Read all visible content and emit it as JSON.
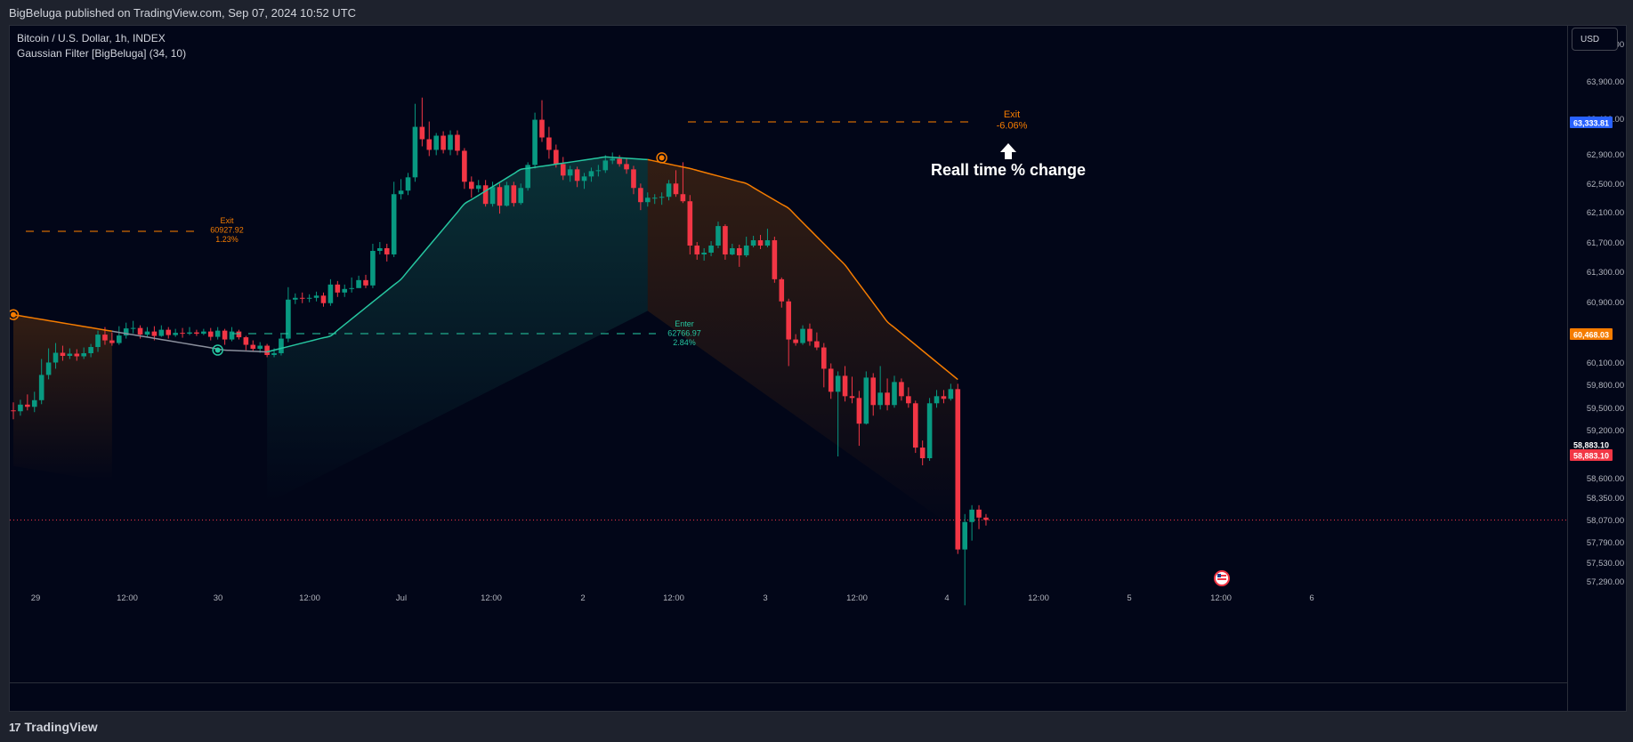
{
  "header": {
    "published": "BigBeluga published on TradingView.com, Sep 07, 2024 10:52 UTC"
  },
  "symbol": {
    "title": "Bitcoin / U.S. Dollar, 1h, INDEX",
    "indicator": "Gaussian Filter [BigBeluga] (34, 10)"
  },
  "currency_button": "USD",
  "footer": {
    "brand": "TradingView",
    "logo": "17"
  },
  "colors": {
    "bull": "#089981",
    "bear": "#f23645",
    "filter_up": "#26c6a0",
    "filter_down": "#f57c00",
    "bg": "#020618"
  },
  "chart_data": {
    "type": "candlestick",
    "y_ticks": [
      "64,100.00",
      "63,900.00",
      "63,400.00",
      "62,900.00",
      "62,500.00",
      "62,100.00",
      "61,700.00",
      "61,300.00",
      "60,900.00",
      "60,100.00",
      "59,800.00",
      "59,500.00",
      "59,200.00",
      "58,600.00",
      "58,350.00",
      "58,070.00",
      "57,790.00",
      "57,530.00",
      "57,290.00"
    ],
    "x_ticks": [
      "29",
      "12:00",
      "30",
      "12:00",
      "Jul",
      "12:00",
      "2",
      "12:00",
      "3",
      "12:00",
      "4",
      "12:00",
      "5",
      "12:00",
      "6"
    ],
    "price_labels": [
      {
        "text": "63,333.81",
        "color": "#2962ff"
      },
      {
        "text": "60,468.03",
        "color": "#f57c00"
      },
      {
        "text": "58,883.10",
        "color": "#020618"
      },
      {
        "text": "58,883.10",
        "color": "#f23645"
      }
    ],
    "candles": [
      [
        60120,
        60110,
        60210,
        60020
      ],
      [
        60110,
        60185,
        60240,
        60060
      ],
      [
        60185,
        60160,
        60300,
        60120
      ],
      [
        60160,
        60235,
        60330,
        60100
      ],
      [
        60235,
        60520,
        60700,
        60190
      ],
      [
        60520,
        60660,
        60820,
        60470
      ],
      [
        60660,
        60770,
        60880,
        60590
      ],
      [
        60770,
        60735,
        60850,
        60680
      ],
      [
        60735,
        60760,
        60820,
        60700
      ],
      [
        60760,
        60730,
        60810,
        60680
      ],
      [
        60730,
        60765,
        60830,
        60700
      ],
      [
        60765,
        60835,
        60870,
        60720
      ],
      [
        60835,
        60975,
        61020,
        60780
      ],
      [
        60975,
        60910,
        61060,
        60860
      ],
      [
        60910,
        60880,
        61000,
        60850
      ],
      [
        60880,
        60965,
        61070,
        60860
      ],
      [
        60965,
        61045,
        61110,
        60930
      ],
      [
        61045,
        61050,
        61130,
        60990
      ],
      [
        61050,
        60975,
        61080,
        60930
      ],
      [
        60975,
        61010,
        61060,
        60950
      ],
      [
        61010,
        60960,
        61070,
        60910
      ],
      [
        60960,
        61030,
        61080,
        60950
      ],
      [
        61030,
        60970,
        61060,
        60930
      ],
      [
        60970,
        60995,
        61040,
        60950
      ],
      [
        60995,
        60985,
        61050,
        60940
      ],
      [
        60985,
        61000,
        61060,
        60970
      ],
      [
        61000,
        60985,
        61030,
        60960
      ],
      [
        60985,
        61010,
        61040,
        60970
      ],
      [
        61010,
        60950,
        61050,
        60910
      ],
      [
        60950,
        61020,
        61060,
        60920
      ],
      [
        61020,
        60920,
        61040,
        60860
      ],
      [
        60920,
        61010,
        61060,
        60900
      ],
      [
        61010,
        60945,
        61030,
        60920
      ],
      [
        60945,
        60860,
        60960,
        60800
      ],
      [
        60860,
        60815,
        60910,
        60780
      ],
      [
        60815,
        60850,
        60890,
        60770
      ],
      [
        60850,
        60745,
        60870,
        60720
      ],
      [
        60745,
        60765,
        60820,
        60720
      ],
      [
        60765,
        60930,
        60980,
        60740
      ],
      [
        60930,
        61370,
        61510,
        60890
      ],
      [
        61370,
        61390,
        61440,
        61320
      ],
      [
        61390,
        61380,
        61450,
        61330
      ],
      [
        61380,
        61390,
        61430,
        61340
      ],
      [
        61390,
        61415,
        61460,
        61350
      ],
      [
        61415,
        61330,
        61450,
        61290
      ],
      [
        61330,
        61540,
        61600,
        61300
      ],
      [
        61540,
        61450,
        61580,
        61400
      ],
      [
        61450,
        61490,
        61540,
        61400
      ],
      [
        61490,
        61500,
        61620,
        61450
      ],
      [
        61500,
        61590,
        61640,
        61520
      ],
      [
        61590,
        61530,
        61650,
        61500
      ],
      [
        61530,
        61920,
        62000,
        61500
      ],
      [
        61920,
        61950,
        62020,
        61880
      ],
      [
        61950,
        61880,
        62000,
        61800
      ],
      [
        61880,
        62560,
        62700,
        61850
      ],
      [
        62560,
        62600,
        62730,
        62500
      ],
      [
        62600,
        62750,
        62800,
        62550
      ],
      [
        62750,
        63320,
        63580,
        62700
      ],
      [
        63320,
        63180,
        63650,
        63100
      ],
      [
        63180,
        63060,
        63380,
        62990
      ],
      [
        63060,
        63220,
        63250,
        63000
      ],
      [
        63220,
        63060,
        63270,
        63020
      ],
      [
        63060,
        63230,
        63280,
        63000
      ],
      [
        63230,
        63050,
        63280,
        63000
      ],
      [
        63050,
        62700,
        63080,
        62620
      ],
      [
        62700,
        62620,
        62760,
        62520
      ],
      [
        62620,
        62660,
        62720,
        62580
      ],
      [
        62660,
        62450,
        62720,
        62420
      ],
      [
        62450,
        62640,
        62700,
        62420
      ],
      [
        62640,
        62430,
        62680,
        62340
      ],
      [
        62430,
        62660,
        62700,
        62420
      ],
      [
        62660,
        62460,
        62700,
        62420
      ],
      [
        62460,
        62630,
        62680,
        62440
      ],
      [
        62630,
        62890,
        62920,
        62600
      ],
      [
        62890,
        63400,
        63480,
        62850
      ],
      [
        63400,
        63200,
        63620,
        63150
      ],
      [
        63200,
        63060,
        63320,
        62960
      ],
      [
        63060,
        62900,
        63120,
        62860
      ],
      [
        62900,
        62770,
        62980,
        62720
      ],
      [
        62770,
        62840,
        62880,
        62700
      ],
      [
        62840,
        62710,
        62870,
        62640
      ],
      [
        62710,
        62760,
        62800,
        62620
      ],
      [
        62760,
        62820,
        62860,
        62700
      ],
      [
        62820,
        62830,
        62890,
        62760
      ],
      [
        62830,
        62940,
        63000,
        62800
      ],
      [
        62940,
        62960,
        63030,
        62900
      ],
      [
        62960,
        62900,
        63000,
        62870
      ],
      [
        62900,
        62840,
        62960,
        62790
      ],
      [
        62840,
        62630,
        62880,
        62560
      ],
      [
        62630,
        62470,
        62680,
        62380
      ],
      [
        62470,
        62520,
        62580,
        62420
      ],
      [
        62520,
        62520,
        62560,
        62450
      ],
      [
        62520,
        62530,
        62580,
        62440
      ],
      [
        62530,
        62680,
        62720,
        62490
      ],
      [
        62680,
        62560,
        62830,
        62530
      ],
      [
        62560,
        62480,
        62920,
        62460
      ],
      [
        62480,
        61980,
        62550,
        61880
      ],
      [
        61980,
        61880,
        62020,
        61820
      ],
      [
        61880,
        61900,
        61950,
        61810
      ],
      [
        61900,
        61980,
        62030,
        61860
      ],
      [
        61980,
        62200,
        62250,
        61950
      ],
      [
        62200,
        61880,
        62220,
        61820
      ],
      [
        61880,
        61950,
        62000,
        61870
      ],
      [
        61950,
        61870,
        61990,
        61740
      ],
      [
        61870,
        61980,
        62080,
        61850
      ],
      [
        61980,
        62040,
        62090,
        61960
      ],
      [
        62040,
        61980,
        62100,
        61940
      ],
      [
        61980,
        62040,
        62170,
        61960
      ],
      [
        62040,
        61600,
        62080,
        61560
      ],
      [
        61600,
        61350,
        61620,
        61280
      ],
      [
        61350,
        60920,
        61380,
        60620
      ],
      [
        60920,
        60880,
        60980,
        60850
      ],
      [
        60880,
        61040,
        61080,
        60860
      ],
      [
        61040,
        60900,
        61100,
        60850
      ],
      [
        60900,
        60830,
        61000,
        60800
      ],
      [
        60830,
        60590,
        60880,
        60380
      ],
      [
        60590,
        60330,
        60650,
        60250
      ],
      [
        60330,
        60510,
        60560,
        59600
      ],
      [
        60510,
        60280,
        60620,
        60220
      ],
      [
        60280,
        60260,
        60500,
        60200
      ],
      [
        60260,
        59970,
        60340,
        59720
      ],
      [
        59970,
        60490,
        60560,
        59960
      ],
      [
        60490,
        60180,
        60540,
        60060
      ],
      [
        60180,
        60320,
        60620,
        60130
      ],
      [
        60320,
        60180,
        60480,
        60120
      ],
      [
        60180,
        60440,
        60510,
        60150
      ],
      [
        60440,
        60280,
        60480,
        60230
      ],
      [
        60280,
        60200,
        60380,
        60150
      ],
      [
        60200,
        59700,
        60230,
        59640
      ],
      [
        59700,
        59580,
        59780,
        59500
      ],
      [
        59580,
        60200,
        60260,
        59550
      ],
      [
        60200,
        60280,
        60350,
        60150
      ],
      [
        60280,
        60250,
        60350,
        60200
      ],
      [
        60250,
        60360,
        60420,
        60230
      ],
      [
        60360,
        58550,
        60420,
        58500
      ],
      [
        58550,
        58860,
        58950,
        57920
      ],
      [
        58860,
        59000,
        59050,
        58650
      ],
      [
        59000,
        58910,
        59050,
        58780
      ],
      [
        58910,
        58883,
        58950,
        58820
      ]
    ],
    "filter": [
      {
        "t": 0,
        "v": 61200
      },
      {
        "t": 30,
        "v": 60800
      },
      {
        "t": 36,
        "v": 60780
      },
      {
        "t": 45,
        "v": 60960
      },
      {
        "t": 55,
        "v": 61600
      },
      {
        "t": 64,
        "v": 62450
      },
      {
        "t": 72,
        "v": 62840
      },
      {
        "t": 84,
        "v": 62980
      },
      {
        "t": 90,
        "v": 62950
      },
      {
        "t": 96,
        "v": 62850
      },
      {
        "t": 104,
        "v": 62680
      },
      {
        "t": 110,
        "v": 62400
      },
      {
        "t": 118,
        "v": 61760
      },
      {
        "t": 124,
        "v": 61120
      },
      {
        "t": 134,
        "v": 60468
      }
    ],
    "markers": [
      {
        "t": 0,
        "v": 61200,
        "color": "#f57c00"
      },
      {
        "t": 29,
        "v": 60800,
        "color": "#26c6a0"
      },
      {
        "t": 92,
        "v": 62970,
        "color": "#f57c00"
      }
    ],
    "signals": [
      {
        "label": "Exit",
        "price": "60927.92",
        "pct": "1.23%",
        "color": "#f57c00"
      },
      {
        "label": "Enter",
        "price": "62766.97",
        "pct": "2.84%",
        "color": "#26c6a0"
      },
      {
        "label": "Exit",
        "price": "",
        "pct": "-6.06%",
        "color": "#f57c00"
      }
    ],
    "annotation": "Reall time % change"
  }
}
